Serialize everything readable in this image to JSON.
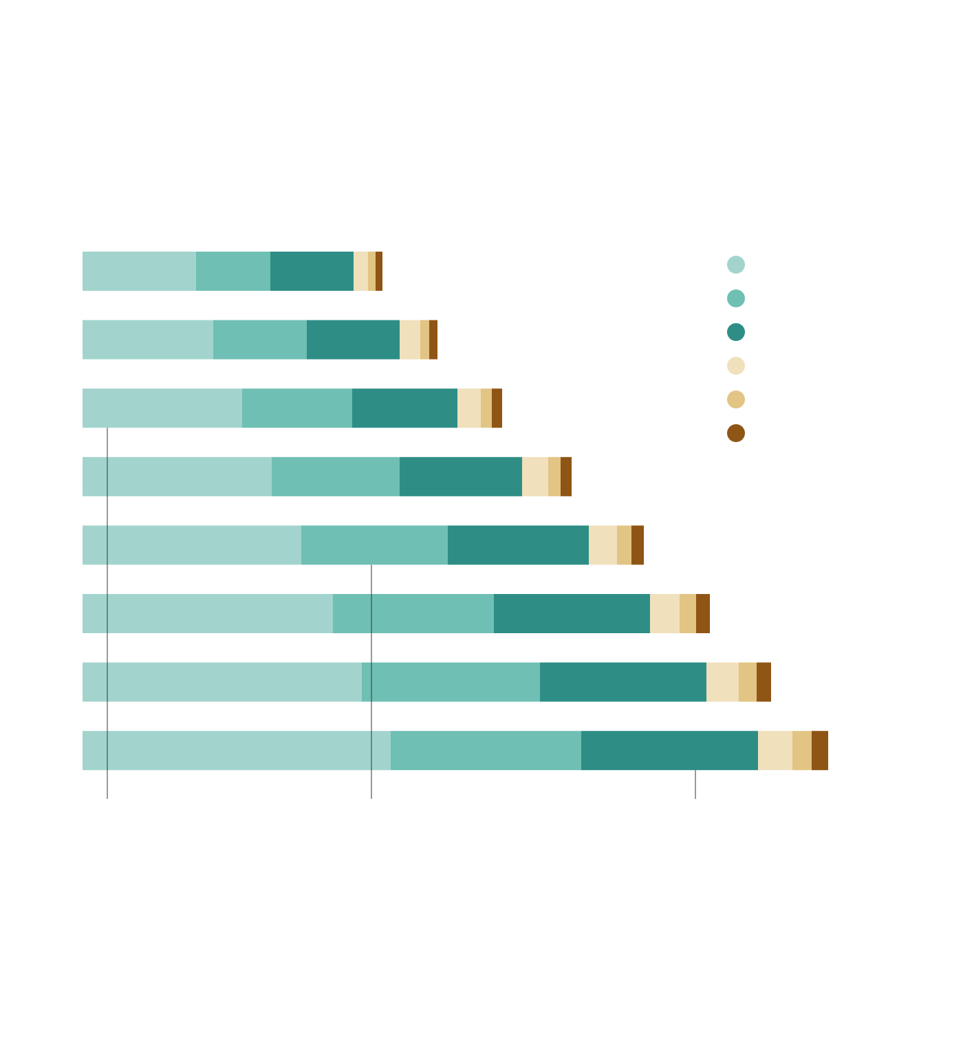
{
  "chart_data": {
    "type": "stacked-bar",
    "orientation": "horizontal",
    "xlim": [
      0,
      1100
    ],
    "series": [
      {
        "color": "#a2d4cd",
        "values": [
          165,
          190,
          232,
          275,
          318,
          364,
          406,
          448
        ]
      },
      {
        "color": "#6fbfb4",
        "values": [
          108,
          136,
          160,
          186,
          213,
          234,
          259,
          277
        ]
      },
      {
        "color": "#2e8e86",
        "values": [
          121,
          135,
          153,
          178,
          205,
          227,
          242,
          257
        ]
      },
      {
        "color": "#f0e0bb",
        "values": [
          21,
          30,
          34,
          38,
          41,
          43,
          47,
          50
        ]
      },
      {
        "color": "#e2c484",
        "values": [
          11,
          13,
          16,
          18,
          21,
          24,
          26,
          28
        ]
      },
      {
        "color": "#8f5514",
        "values": [
          10,
          12,
          15,
          16,
          18,
          20,
          21,
          24
        ]
      }
    ],
    "reference_lines": [
      36,
      420,
      891
    ],
    "reference_line_color": "#333333",
    "legend": "top-right"
  }
}
